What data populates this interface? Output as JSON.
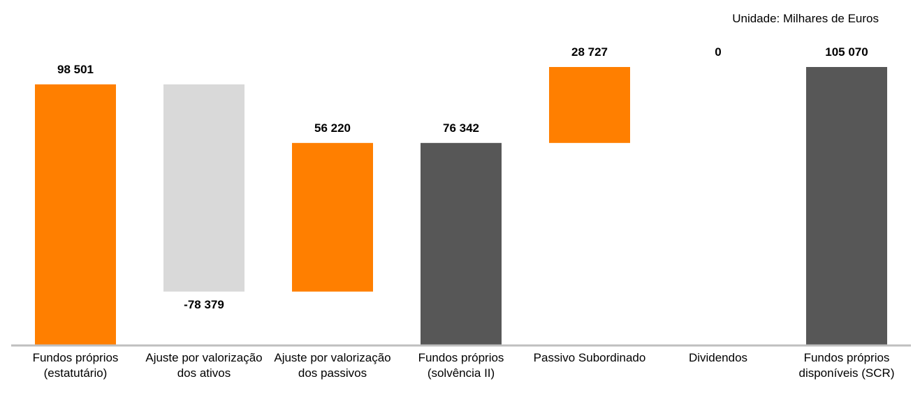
{
  "chart_data": {
    "type": "waterfall",
    "unit_note": "Unidade: Milhares de Euros",
    "categories": [
      "Fundos próprios (estatutário)",
      "Ajuste por valorização dos ativos",
      "Ajuste por valorização dos passivos",
      "Fundos próprios (solvência II)",
      "Passivo Subordinado",
      "Dividendos",
      "Fundos próprios disponíveis (SCR)"
    ],
    "values": [
      98501,
      -78379,
      56220,
      76342,
      28727,
      0,
      105070
    ],
    "value_labels": [
      "98 501",
      "-78 379",
      "56 220",
      "76 342",
      "28 727",
      "0",
      "105 070"
    ],
    "measure": [
      "absolute",
      "relative",
      "relative",
      "total",
      "relative",
      "relative",
      "total"
    ],
    "colors": [
      "#ff7f00",
      "#d9d9d9",
      "#ff7f00",
      "#575757",
      "#ff7f00",
      "#ff7f00",
      "#575757"
    ]
  }
}
